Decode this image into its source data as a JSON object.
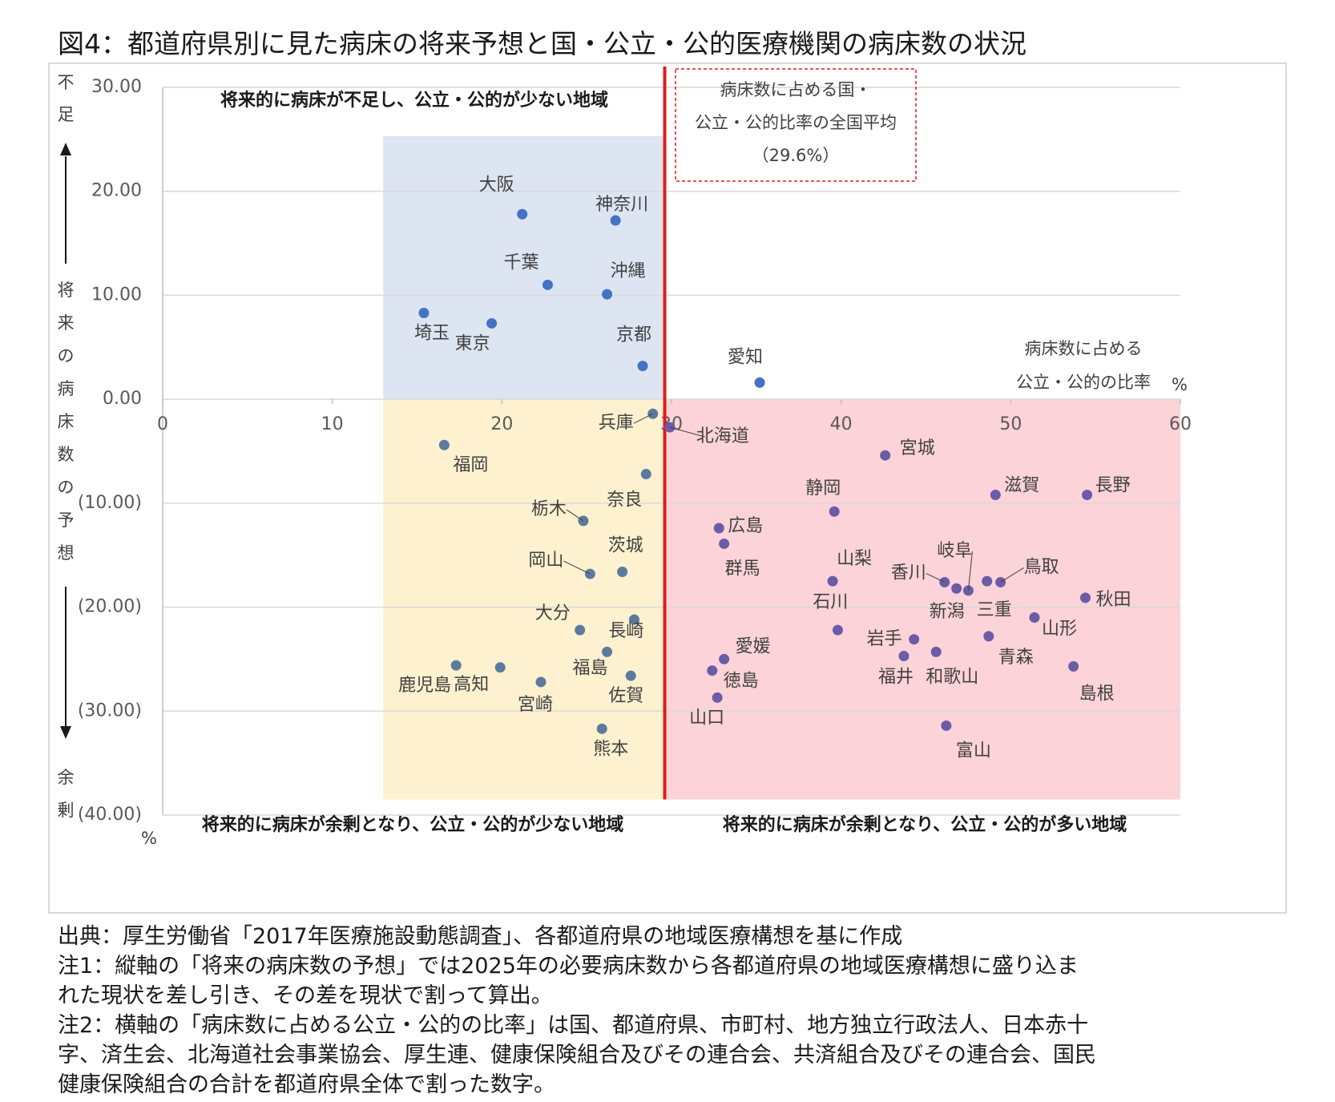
{
  "figure_title": "図4：都道府県別に見た病床の将来予想と国・公立・公的医療機関の病床数の状況",
  "notes": [
    "出典：厚生労働省「2017年医療施設動態調査」、各都道府県の地域医療構想を基に作成",
    "注1：縦軸の「将来の病床数の予想」では2025年の必要病床数から各都道府県の地域医療構想に盛り込ま",
    "れた現状を差し引き、その差を現状で割って算出。",
    "注2：横軸の「病床数に占める公立・公的の比率」は国、都道府県、市町村、地方独立行政法人、日本赤十",
    "字、済生会、北海道社会事業協会、厚生連、健康保険組合及びその連合会、共済組合及びその連合会、国民",
    "健康保険組合の合計を都道府県全体で割った数字。"
  ],
  "chart_data": {
    "type": "scatter",
    "xlim": [
      0,
      60
    ],
    "ylim": [
      -40,
      30
    ],
    "x_ticks": [
      "0",
      "10",
      "20",
      "30",
      "40",
      "50",
      "60"
    ],
    "y_ticks": [
      {
        "value": 30,
        "label": "30.00"
      },
      {
        "value": 20,
        "label": "20.00"
      },
      {
        "value": 10,
        "label": "10.00"
      },
      {
        "value": 0,
        "label": "0.00"
      },
      {
        "value": -10,
        "label": "(10.00)"
      },
      {
        "value": -20,
        "label": "(20.00)"
      },
      {
        "value": -30,
        "label": "(30.00)"
      },
      {
        "value": -40,
        "label": "(40.00)"
      }
    ],
    "x_unit": "%",
    "y_unit": "%",
    "x_axis_label": [
      "病床数に占める",
      "公立・公的の比率"
    ],
    "y_axis_top_label": [
      "不",
      "足"
    ],
    "y_axis_mid_label": [
      "将",
      "来",
      "の",
      "病",
      "床",
      "数",
      "の",
      "予",
      "想"
    ],
    "y_axis_bottom_label": [
      "余",
      "剰"
    ],
    "national_average": {
      "value": 29.6,
      "label_lines": [
        "病床数に占める国・",
        "公立・公的比率の全国平均",
        "（29.6%）"
      ],
      "color": "#e21c1c"
    },
    "regions": [
      {
        "label": "将来的に病床が不足し、公立・公的が少ない地域",
        "x_from": 13,
        "x_to": 29.6,
        "y_from": 0,
        "y_to": 25.3,
        "color": "#dde4f2"
      },
      {
        "label": "将来的に病床が余剰となり、公立・公的が少ない地域",
        "x_from": 13,
        "x_to": 29.6,
        "y_from": -38.5,
        "y_to": 0,
        "color": "#fdf1cf"
      },
      {
        "label": "将来的に病床が余剰となり、公立・公的が多い地域",
        "x_from": 29.6,
        "x_to": 60,
        "y_from": -38.5,
        "y_to": 0,
        "color": "#fcd3d8"
      }
    ],
    "point_colors": {
      "top": "#4472c4",
      "bottom_left": "#5c7a9e",
      "bottom_right": "#6a5ca6"
    },
    "points": [
      {
        "name": "大阪",
        "x": 21.2,
        "y": 17.8
      },
      {
        "name": "神奈川",
        "x": 26.7,
        "y": 17.2
      },
      {
        "name": "千葉",
        "x": 22.7,
        "y": 11.0
      },
      {
        "name": "沖縄",
        "x": 26.2,
        "y": 10.1
      },
      {
        "name": "埼玉",
        "x": 15.4,
        "y": 8.3
      },
      {
        "name": "東京",
        "x": 19.4,
        "y": 7.3
      },
      {
        "name": "京都",
        "x": 28.3,
        "y": 3.2
      },
      {
        "name": "愛知",
        "x": 35.2,
        "y": 1.6
      },
      {
        "name": "兵庫",
        "x": 28.9,
        "y": -1.4
      },
      {
        "name": "北海道",
        "x": 29.9,
        "y": -2.7
      },
      {
        "name": "福岡",
        "x": 16.6,
        "y": -4.4
      },
      {
        "name": "宮城",
        "x": 42.6,
        "y": -5.4
      },
      {
        "name": "奈良",
        "x": 28.5,
        "y": -7.2
      },
      {
        "name": "滋賀",
        "x": 49.1,
        "y": -9.2
      },
      {
        "name": "長野",
        "x": 54.5,
        "y": -9.2
      },
      {
        "name": "静岡",
        "x": 39.6,
        "y": -10.8
      },
      {
        "name": "栃木",
        "x": 24.8,
        "y": -11.7
      },
      {
        "name": "広島",
        "x": 32.8,
        "y": -12.4
      },
      {
        "name": "群馬",
        "x": 33.1,
        "y": -13.9
      },
      {
        "name": "岡山",
        "x": 25.2,
        "y": -16.8
      },
      {
        "name": "茨城",
        "x": 27.1,
        "y": -16.6
      },
      {
        "name": "山梨",
        "x": 39.5,
        "y": -17.5
      },
      {
        "name": "香川",
        "x": 46.1,
        "y": -17.6
      },
      {
        "name": "新潟",
        "x": 46.8,
        "y": -18.2
      },
      {
        "name": "岐阜",
        "x": 47.5,
        "y": -18.4
      },
      {
        "name": "三重",
        "x": 48.6,
        "y": -17.5
      },
      {
        "name": "鳥取",
        "x": 49.4,
        "y": -17.6
      },
      {
        "name": "秋田",
        "x": 54.4,
        "y": -19.1
      },
      {
        "name": "長崎",
        "x": 27.8,
        "y": -21.2
      },
      {
        "name": "大分",
        "x": 24.6,
        "y": -22.2
      },
      {
        "name": "石川",
        "x": 39.8,
        "y": -22.2
      },
      {
        "name": "山形",
        "x": 51.4,
        "y": -21.0
      },
      {
        "name": "岩手",
        "x": 44.3,
        "y": -23.1
      },
      {
        "name": "青森",
        "x": 48.7,
        "y": -22.8
      },
      {
        "name": "福島",
        "x": 26.2,
        "y": -24.3
      },
      {
        "name": "愛媛",
        "x": 33.1,
        "y": -25.0
      },
      {
        "name": "和歌山",
        "x": 45.6,
        "y": -24.3
      },
      {
        "name": "福井",
        "x": 43.7,
        "y": -24.7
      },
      {
        "name": "鹿児島",
        "x": 17.3,
        "y": -25.6
      },
      {
        "name": "高知",
        "x": 19.9,
        "y": -25.8
      },
      {
        "name": "島根",
        "x": 53.7,
        "y": -25.7
      },
      {
        "name": "徳島",
        "x": 32.4,
        "y": -26.1
      },
      {
        "name": "佐賀",
        "x": 27.6,
        "y": -26.6
      },
      {
        "name": "宮崎",
        "x": 22.3,
        "y": -27.2
      },
      {
        "name": "山口",
        "x": 32.7,
        "y": -28.7
      },
      {
        "name": "熊本",
        "x": 25.9,
        "y": -31.7
      },
      {
        "name": "富山",
        "x": 46.2,
        "y": -31.4
      }
    ]
  }
}
